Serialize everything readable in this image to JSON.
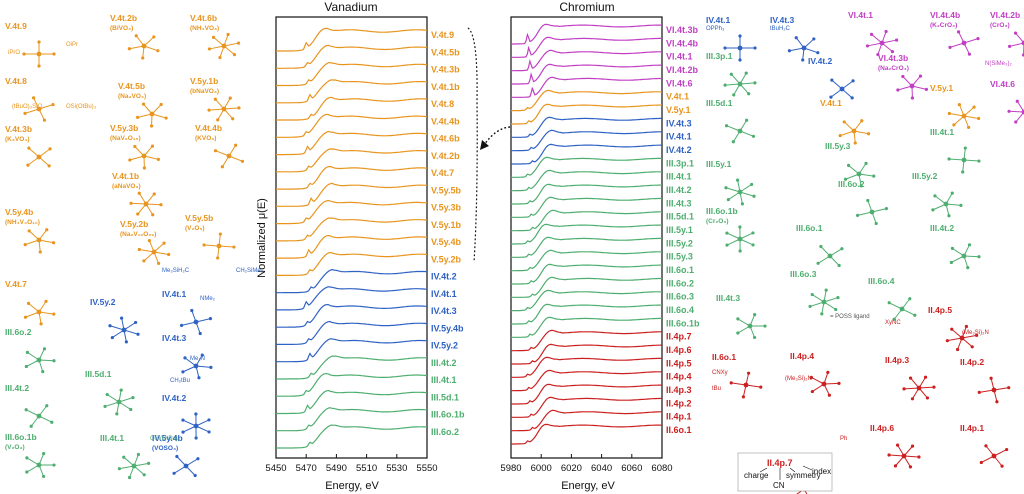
{
  "colors": {
    "V5": "#e8951f",
    "V4": "#2f62c4",
    "V3": "#4eae6f",
    "Cr6": "#c13fc4",
    "Cr5": "#e8951f",
    "Cr4": "#2f62c4",
    "Cr3": "#4eae6f",
    "Cr2": "#cc2020",
    "axis": "#111111"
  },
  "chart_data": [
    {
      "type": "line",
      "title": "Vanadium",
      "xlabel": "Energy, eV",
      "ylabel": "Normalized μ(E)",
      "xlim": [
        5450,
        5550
      ],
      "x_ticks": [
        "5450",
        "5470",
        "5490",
        "5510",
        "5530",
        "5550"
      ],
      "edge": 5470,
      "curve_family": "vanadium",
      "series": [
        {
          "name": "V.4t.9",
          "group": "V5"
        },
        {
          "name": "V.4t.5b",
          "group": "V5"
        },
        {
          "name": "V.4t.3b",
          "group": "V5"
        },
        {
          "name": "V.4t.1b",
          "group": "V5"
        },
        {
          "name": "V.4t.8",
          "group": "V5"
        },
        {
          "name": "V.4t.4b",
          "group": "V5"
        },
        {
          "name": "V.4t.6b",
          "group": "V5"
        },
        {
          "name": "V.4t.2b",
          "group": "V5"
        },
        {
          "name": "V.4t.7",
          "group": "V5"
        },
        {
          "name": "V.5y.5b",
          "group": "V5"
        },
        {
          "name": "V.5y.3b",
          "group": "V5"
        },
        {
          "name": "V.5y.1b",
          "group": "V5"
        },
        {
          "name": "V.5y.4b",
          "group": "V5"
        },
        {
          "name": "V.5y.2b",
          "group": "V5"
        },
        {
          "name": "IV.4t.2",
          "group": "V4"
        },
        {
          "name": "IV.4t.1",
          "group": "V4"
        },
        {
          "name": "IV.4t.3",
          "group": "V4"
        },
        {
          "name": "IV.5y.4b",
          "group": "V4"
        },
        {
          "name": "IV.5y.2",
          "group": "V4"
        },
        {
          "name": "III.4t.2",
          "group": "V3"
        },
        {
          "name": "III.4t.1",
          "group": "V3"
        },
        {
          "name": "III.5d.1",
          "group": "V3"
        },
        {
          "name": "III.6o.1b",
          "group": "V3"
        },
        {
          "name": "III.6o.2",
          "group": "V3"
        }
      ]
    },
    {
      "type": "line",
      "title": "Chromium",
      "xlabel": "Energy, eV",
      "ylabel": "",
      "xlim": [
        5980,
        6080
      ],
      "x_ticks": [
        "5980",
        "6000",
        "6020",
        "6040",
        "6060",
        "6080"
      ],
      "edge": 5993,
      "curve_family": "chromium",
      "series": [
        {
          "name": "VI.4t.3b",
          "group": "Cr6"
        },
        {
          "name": "VI.4t.4b",
          "group": "Cr6"
        },
        {
          "name": "VI.4t.1",
          "group": "Cr6"
        },
        {
          "name": "VI.4t.2b",
          "group": "Cr6"
        },
        {
          "name": "VI.4t.6",
          "group": "Cr6"
        },
        {
          "name": "V.4t.1",
          "group": "Cr5"
        },
        {
          "name": "V.5y.1",
          "group": "Cr5"
        },
        {
          "name": "IV.4t.3",
          "group": "Cr4"
        },
        {
          "name": "IV.4t.1",
          "group": "Cr4"
        },
        {
          "name": "IV.4t.2",
          "group": "Cr4"
        },
        {
          "name": "III.3p.1",
          "group": "Cr3"
        },
        {
          "name": "III.4t.1",
          "group": "Cr3"
        },
        {
          "name": "III.4t.2",
          "group": "Cr3"
        },
        {
          "name": "III.4t.3",
          "group": "Cr3"
        },
        {
          "name": "III.5d.1",
          "group": "Cr3"
        },
        {
          "name": "III.5y.1",
          "group": "Cr3"
        },
        {
          "name": "III.5y.2",
          "group": "Cr3"
        },
        {
          "name": "III.5y.3",
          "group": "Cr3"
        },
        {
          "name": "III.6o.1",
          "group": "Cr3"
        },
        {
          "name": "III.6o.2",
          "group": "Cr3"
        },
        {
          "name": "III.6o.3",
          "group": "Cr3"
        },
        {
          "name": "III.6o.4",
          "group": "Cr3"
        },
        {
          "name": "III.6o.1b",
          "group": "Cr3"
        },
        {
          "name": "II.4p.7",
          "group": "Cr2"
        },
        {
          "name": "II.4p.6",
          "group": "Cr2"
        },
        {
          "name": "II.4p.5",
          "group": "Cr2"
        },
        {
          "name": "II.4p.4",
          "group": "Cr2"
        },
        {
          "name": "II.4p.3",
          "group": "Cr2"
        },
        {
          "name": "II.4p.2",
          "group": "Cr2"
        },
        {
          "name": "II.4p.1",
          "group": "Cr2"
        },
        {
          "name": "II.6o.1",
          "group": "Cr2"
        }
      ]
    }
  ],
  "molecules_left": [
    {
      "label": "V.4t.9",
      "sub": "",
      "group": "V5"
    },
    {
      "label": "V.4t.2b",
      "sub": "(BiVO₄)",
      "group": "V5"
    },
    {
      "label": "V.4t.6b",
      "sub": "(NH₄VO₃)",
      "group": "V5"
    },
    {
      "label": "V.4t.8",
      "sub": "",
      "group": "V5"
    },
    {
      "label": "V.4t.5b",
      "sub": "(Na₃VO₄)",
      "group": "V5"
    },
    {
      "label": "V.5y.1b",
      "sub": "(bNaVO₃)",
      "group": "V5"
    },
    {
      "label": "V.4t.3b",
      "sub": "(K₃VO₄)",
      "group": "V5"
    },
    {
      "label": "V.5y.3b",
      "sub": "(NaV₆O₁₅)",
      "group": "V5"
    },
    {
      "label": "V.4t.1b",
      "sub": "(aNaVO₃)",
      "group": "V5"
    },
    {
      "label": "V.4t.4b",
      "sub": "(KVO₃)",
      "group": "V5"
    },
    {
      "label": "V.5y.4b",
      "sub": "(NH₄V₄O₁₀)",
      "group": "V5"
    },
    {
      "label": "V.5y.2b",
      "sub": "(Na₂V₁₂O₂₉)",
      "group": "V5"
    },
    {
      "label": "V.5y.5b",
      "sub": "(V₂O₅)",
      "group": "V5"
    },
    {
      "label": "V.4t.7",
      "sub": "",
      "group": "V5"
    },
    {
      "label": "IV.5y.2",
      "sub": "",
      "group": "V4"
    },
    {
      "label": "IV.4t.1",
      "sub": "",
      "group": "V4"
    },
    {
      "label": "IV.4t.3",
      "sub": "",
      "group": "V4"
    },
    {
      "label": "IV.4t.2",
      "sub": "",
      "group": "V4"
    },
    {
      "label": "IV.5y.4b",
      "sub": "(VOSO₄)",
      "group": "V4"
    },
    {
      "label": "III.6o.2",
      "sub": "",
      "group": "V3"
    },
    {
      "label": "III.5d.1",
      "sub": "",
      "group": "V3"
    },
    {
      "label": "III.4t.2",
      "sub": "",
      "group": "V3"
    },
    {
      "label": "III.6o.1b",
      "sub": "(V₂O₃)",
      "group": "V3"
    },
    {
      "label": "III.4t.1",
      "sub": "",
      "group": "V3"
    }
  ],
  "molecules_right": [
    {
      "label": "IV.4t.1",
      "sub": "",
      "group": "Cr4"
    },
    {
      "label": "IV.4t.3",
      "sub": "",
      "group": "Cr4"
    },
    {
      "label": "VI.4t.1",
      "sub": "",
      "group": "Cr6"
    },
    {
      "label": "VI.4t.4b",
      "sub": "(K₂CrO₄)",
      "group": "Cr6"
    },
    {
      "label": "VI.4t.2b",
      "sub": "(CrO₃)",
      "group": "Cr6"
    },
    {
      "label": "III.3p.1",
      "sub": "",
      "group": "Cr3"
    },
    {
      "label": "IV.4t.2",
      "sub": "",
      "group": "Cr4"
    },
    {
      "label": "VI.4t.3b",
      "sub": "(Na₂CrO₄)",
      "group": "Cr6"
    },
    {
      "label": "VI.4t.6",
      "sub": "",
      "group": "Cr6"
    },
    {
      "label": "III.5d.1",
      "sub": "",
      "group": "Cr3"
    },
    {
      "label": "V.4t.1",
      "sub": "",
      "group": "Cr5"
    },
    {
      "label": "V.5y.1",
      "sub": "",
      "group": "Cr5"
    },
    {
      "label": "III.4t.1",
      "sub": "",
      "group": "Cr3"
    },
    {
      "label": "III.5y.3",
      "sub": "",
      "group": "Cr3"
    },
    {
      "label": "III.5y.1",
      "sub": "",
      "group": "Cr3"
    },
    {
      "label": "III.6o.2",
      "sub": "",
      "group": "Cr3"
    },
    {
      "label": "III.5y.2",
      "sub": "",
      "group": "Cr3"
    },
    {
      "label": "III.6o.1b",
      "sub": "(Cr₂O₃)",
      "group": "Cr3"
    },
    {
      "label": "III.6o.1",
      "sub": "",
      "group": "Cr3"
    },
    {
      "label": "III.4t.2",
      "sub": "",
      "group": "Cr3"
    },
    {
      "label": "III.6o.3",
      "sub": "",
      "group": "Cr3"
    },
    {
      "label": "III.6o.4",
      "sub": "",
      "group": "Cr3"
    },
    {
      "label": "III.4t.3",
      "sub": "",
      "group": "Cr3"
    },
    {
      "label": "II.4p.5",
      "sub": "",
      "group": "Cr2"
    },
    {
      "label": "II.6o.1",
      "sub": "",
      "group": "Cr2"
    },
    {
      "label": "II.4p.4",
      "sub": "",
      "group": "Cr2"
    },
    {
      "label": "II.4p.3",
      "sub": "",
      "group": "Cr2"
    },
    {
      "label": "II.4p.2",
      "sub": "",
      "group": "Cr2"
    },
    {
      "label": "II.4p.7",
      "sub": "",
      "group": "Cr2"
    },
    {
      "label": "II.4p.6",
      "sub": "",
      "group": "Cr2"
    },
    {
      "label": "II.4p.1",
      "sub": "",
      "group": "Cr2"
    }
  ],
  "molecule_fragments": [
    "iPrO",
    "OiPr",
    "(tBuO)₃SiO",
    "OSi(OtBu)₃",
    "Me₃SiH₂C",
    "CH₂SiMe₃",
    "NMe₂",
    "Me₂N",
    "CH₂tBu",
    "tBuH₂C",
    "OPPh₃",
    "N(SiMe₃)₂",
    "(Me₃Si)₂N",
    "XyNC",
    "CNXy",
    "tBu",
    "Ph",
    "OSi(OtBu)₃",
    "(Me₃Si)₂N"
  ],
  "poss_note": "= POSS ligand",
  "key": {
    "example": "II.4p.7",
    "charge": "charge",
    "cn": "CN",
    "symmetry": "symmetry",
    "index": "index"
  }
}
